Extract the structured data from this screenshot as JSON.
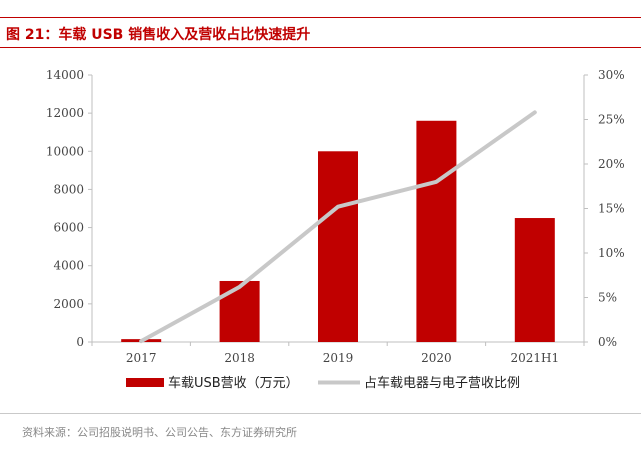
{
  "figure": {
    "title": "图 21：车载 USB 销售收入及营收占比快速提升",
    "source": "资料来源：公司招股说明书、公司公告、东方证券研究所"
  },
  "colors": {
    "accent": "#c00000",
    "bar": "#c00000",
    "line": "#c8c8c8",
    "axis_text": "#444444"
  },
  "chart_data": {
    "type": "bar",
    "categories": [
      "2017",
      "2018",
      "2019",
      "2020",
      "2021H1"
    ],
    "series": [
      {
        "name": "车载USB营收（万元）",
        "type": "bar",
        "axis": "left",
        "values": [
          150,
          3200,
          10000,
          11600,
          6500
        ]
      },
      {
        "name": "占车载电器与电子营收比例",
        "type": "line",
        "axis": "right",
        "values": [
          0.1,
          6.2,
          15.2,
          18.0,
          25.8
        ]
      }
    ],
    "y_left": {
      "min": 0,
      "max": 14000,
      "ticks": [
        0,
        2000,
        4000,
        6000,
        8000,
        10000,
        12000,
        14000
      ],
      "tick_labels": [
        "0",
        "2000",
        "4000",
        "6000",
        "8000",
        "10000",
        "12000",
        "14000"
      ]
    },
    "y_right": {
      "min": 0,
      "max": 30,
      "ticks": [
        0,
        5,
        10,
        15,
        20,
        25,
        30
      ],
      "tick_labels": [
        "0%",
        "5%",
        "10%",
        "15%",
        "20%",
        "25%",
        "30%"
      ]
    },
    "grid": false,
    "legend_position": "bottom"
  }
}
